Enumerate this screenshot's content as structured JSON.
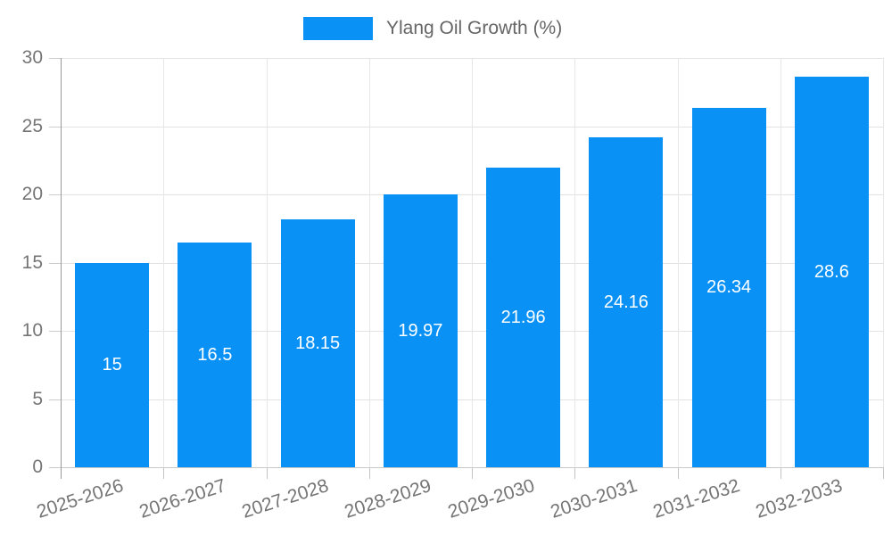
{
  "legend": {
    "label": "Ylang Oil Growth (%)"
  },
  "colors": {
    "bar": "#0a91f5",
    "grid_line": "#e3e3e3",
    "baseline": "#c9c9c9",
    "y_axis_line": "#999999",
    "tick": "#cccccc",
    "axis_text": "#757575",
    "legend_text": "#666666",
    "value_label_text": "#ffffff",
    "background": "#ffffff"
  },
  "chart_data": {
    "type": "bar",
    "title": "",
    "xlabel": "",
    "ylabel": "",
    "categories": [
      "2025-2026",
      "2026-2027",
      "2027-2028",
      "2028-2029",
      "2029-2030",
      "2030-2031",
      "2031-2032",
      "2032-2033"
    ],
    "series": [
      {
        "name": "Ylang Oil Growth (%)",
        "values": [
          15,
          16.5,
          18.15,
          19.97,
          21.96,
          24.16,
          26.34,
          28.6
        ],
        "value_labels": [
          "15",
          "16.5",
          "18.15",
          "19.97",
          "21.96",
          "24.16",
          "26.34",
          "28.6"
        ]
      }
    ],
    "ylim": [
      0,
      30
    ],
    "yticks": [
      0,
      5,
      10,
      15,
      20,
      25,
      30
    ],
    "ytick_labels": [
      "0",
      "5",
      "10",
      "15",
      "20",
      "25",
      "30"
    ],
    "grid": true,
    "legend_position": "top-center",
    "value_labels_inside_bars": true,
    "x_label_rotation_deg": -18
  }
}
